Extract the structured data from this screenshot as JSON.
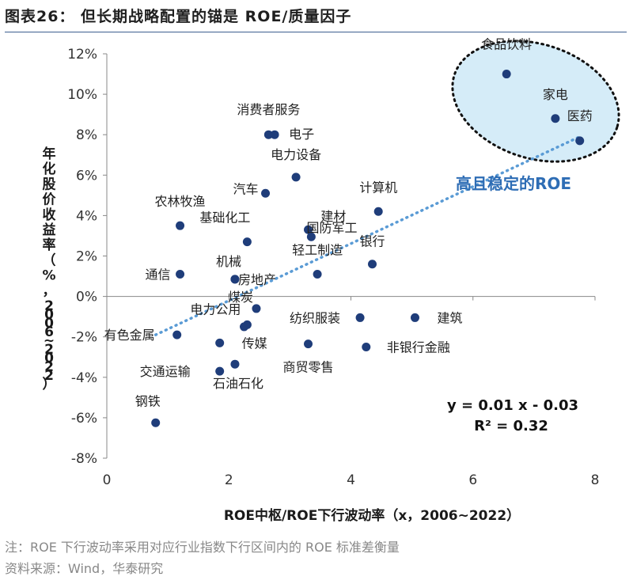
{
  "figure": {
    "title": "图表26： 但长期战略配置的锚是 ROE/质量因子",
    "note": "注：ROE 下行波动率采用对应行业指数下行区间内的 ROE 标准差衡量",
    "source": "资料来源：Wind，华泰研究"
  },
  "chart_data": {
    "type": "scatter",
    "title": "",
    "xlabel": "ROE中枢/ROE下行波动率（x，2006~2022）",
    "ylabel": "年化股价收益率（%，2006~2022）",
    "xlim": [
      0,
      8
    ],
    "ylim": [
      -8,
      12
    ],
    "x_ticks": [
      "0",
      "2",
      "4",
      "6",
      "8"
    ],
    "y_ticks": [
      "-8%",
      "-6%",
      "-4%",
      "-2%",
      "0%",
      "2%",
      "4%",
      "6%",
      "8%",
      "10%",
      "12%"
    ],
    "grid": false,
    "marker_color": "#1f3d7a",
    "trendline_color": "#5a9bd5",
    "highlight_fill": "#d5ecf8",
    "annotation_color": "#2e6db5",
    "points": [
      {
        "name": "食品饮料",
        "x": 6.55,
        "y": 11.0
      },
      {
        "name": "家电",
        "x": 7.35,
        "y": 8.8
      },
      {
        "name": "医药",
        "x": 7.75,
        "y": 7.7
      },
      {
        "name": "消费者服务",
        "x": 2.65,
        "y": 8.0
      },
      {
        "name": "电子",
        "x": 2.75,
        "y": 8.0
      },
      {
        "name": "电力设备",
        "x": 3.1,
        "y": 5.9
      },
      {
        "name": "汽车",
        "x": 2.6,
        "y": 5.1
      },
      {
        "name": "国防军工",
        "x": 3.3,
        "y": 3.3
      },
      {
        "name": "建材",
        "x": 3.35,
        "y": 2.95
      },
      {
        "name": "计算机",
        "x": 4.45,
        "y": 4.2
      },
      {
        "name": "农林牧渔",
        "x": 1.2,
        "y": 3.5
      },
      {
        "name": "基础化工",
        "x": 2.3,
        "y": 2.7
      },
      {
        "name": "银行",
        "x": 4.35,
        "y": 1.6
      },
      {
        "name": "轻工制造",
        "x": 3.45,
        "y": 1.1
      },
      {
        "name": "机械",
        "x": 2.1,
        "y": 0.85
      },
      {
        "name": "通信",
        "x": 1.2,
        "y": 1.1
      },
      {
        "name": "房地产",
        "x": 2.1,
        "y": 0.85
      },
      {
        "name": "煤炭",
        "x": 2.45,
        "y": -0.6
      },
      {
        "name": "纺织服装",
        "x": 4.15,
        "y": -1.05
      },
      {
        "name": "建筑",
        "x": 5.05,
        "y": -1.05
      },
      {
        "name": "电力公用",
        "x": 2.3,
        "y": -1.4
      },
      {
        "name": "有色金属",
        "x": 1.15,
        "y": -1.9
      },
      {
        "name": "传媒",
        "x": 1.85,
        "y": -2.3
      },
      {
        "name": "商贸零售",
        "x": 3.3,
        "y": -2.35
      },
      {
        "name": "非银行金融",
        "x": 4.25,
        "y": -2.5
      },
      {
        "name": "交通运输",
        "x": 1.85,
        "y": -3.7
      },
      {
        "name": "石油石化",
        "x": 2.1,
        "y": -3.35
      },
      {
        "name": "钢铁",
        "x": 0.8,
        "y": -6.25
      },
      {
        "name": "",
        "x": 2.25,
        "y": -1.5
      }
    ],
    "trendline": {
      "equation": "y = 0.01 x - 0.03",
      "r2": "R² = 0.32",
      "x_range": [
        0.8,
        7.75
      ],
      "y_range": [
        -1.9,
        7.9
      ]
    },
    "highlight_label": "高且稳定的ROE"
  }
}
